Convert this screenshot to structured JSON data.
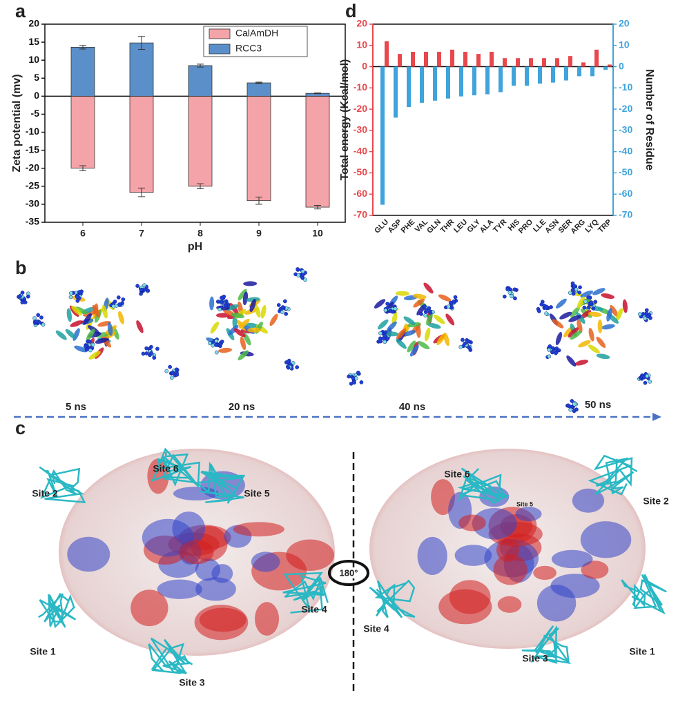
{
  "chart_data": [
    {
      "type": "bar",
      "x_label": "pH",
      "y_label": "Zeta potential (mv)",
      "categories": [
        "6",
        "7",
        "8",
        "9",
        "10"
      ],
      "series": [
        {
          "name": "CalAmDH",
          "color": "#f4a3a8",
          "values": [
            -20,
            -26.7,
            -25,
            -29,
            -30.8
          ],
          "errors": [
            0.7,
            1.2,
            0.7,
            1.0,
            0.5
          ]
        },
        {
          "name": "RCC3",
          "color": "#5b8fc9",
          "values": [
            13.6,
            14.8,
            8.5,
            3.7,
            0.8
          ],
          "errors": [
            0.5,
            1.8,
            0.4,
            0.2,
            0.1
          ]
        }
      ],
      "ylim": [
        -35,
        20
      ],
      "yticks": [
        -35,
        -30,
        -25,
        -20,
        -15,
        -10,
        -5,
        0,
        5,
        10,
        15,
        20
      ],
      "legend": "upper right"
    },
    {
      "type": "bar",
      "y_label": "Total energy (Kcal/mol)",
      "y2_label": "Number of  Residue",
      "categories": [
        "GLU",
        "ASP",
        "PHE",
        "VAL",
        "GLN",
        "THR",
        "LEU",
        "GLY",
        "ALA",
        "TYR",
        "HIS",
        "PRO",
        "LLE",
        "ASN",
        "SER",
        "ARG",
        "LYQ",
        "TRP"
      ],
      "series": [
        {
          "color": "#e8474c",
          "values": [
            12,
            6,
            7,
            7,
            7,
            8,
            7,
            6,
            7,
            4,
            4,
            4,
            4,
            4,
            5,
            2,
            8,
            1
          ]
        },
        {
          "color": "#3fa3dc",
          "axis": "y2",
          "values": [
            -65,
            -24,
            -19,
            -17,
            -16,
            -15,
            -14,
            -13.5,
            -13,
            -12,
            -9,
            -9,
            -8,
            -7.5,
            -6.5,
            -4.5,
            -4.5,
            -1.5
          ]
        }
      ],
      "ylim": [
        -70,
        20
      ],
      "yticks": [
        -70,
        -60,
        -50,
        -40,
        -30,
        -20,
        -10,
        0,
        10,
        20
      ],
      "y2lim": [
        -70,
        20
      ],
      "y2ticks": [
        -70,
        -60,
        -50,
        -40,
        -30,
        -20,
        -10,
        0,
        10,
        20
      ]
    }
  ],
  "panels": [
    "a",
    "b",
    "c",
    "d"
  ],
  "snapshots": [
    "5 ns",
    "20 ns",
    "40 ns",
    "50 ns"
  ],
  "surface_left": [
    "Site 6",
    "Site 2",
    "Site 5",
    "Site 1",
    "Site 3",
    "Site 4"
  ],
  "surface_right": [
    "Site 6",
    "Site 5",
    "Site 2",
    "Site 1",
    "Site 3",
    "Site 4"
  ],
  "rotation": "180°"
}
